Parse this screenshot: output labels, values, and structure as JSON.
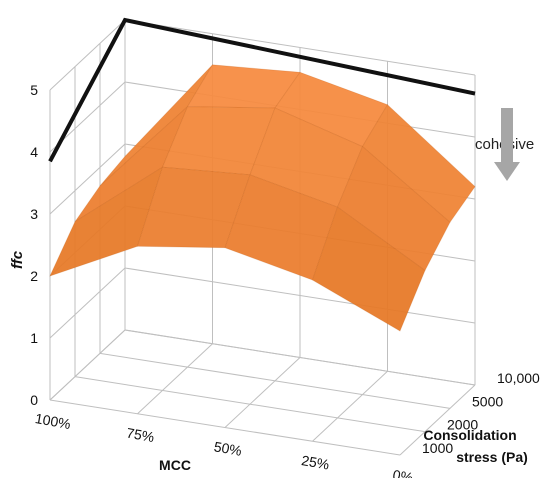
{
  "chart_data": {
    "type": "surface",
    "title": "",
    "ylabel": "ffc",
    "xlabel": "MCC",
    "zlabel_line1": "Consolidation",
    "zlabel_line2": "stress (Pa)",
    "x_categories": [
      "100%",
      "75%",
      "50%",
      "25%",
      "0%"
    ],
    "z_categories": [
      "1000",
      "2000",
      "5000",
      "10,000"
    ],
    "y_ticks": [
      "0",
      "1",
      "2",
      "3",
      "4",
      "5"
    ],
    "ylim": [
      0,
      5
    ],
    "surface": [
      [
        2.0,
        2.5,
        2.7,
        2.8
      ],
      [
        2.7,
        3.6,
        4.2,
        4.5
      ],
      [
        2.9,
        3.7,
        4.4,
        4.6
      ],
      [
        2.6,
        3.4,
        4.0,
        4.3
      ],
      [
        2.0,
        2.6,
        3.0,
        3.2
      ]
    ],
    "threshold_line": [
      3.85,
      5.0,
      4.7
    ],
    "annotation": "cohesive",
    "colors": {
      "surface": "#F4822C",
      "line": "#111111",
      "arrow": "#A6A6A6",
      "grid": "#BFBFBF"
    }
  }
}
